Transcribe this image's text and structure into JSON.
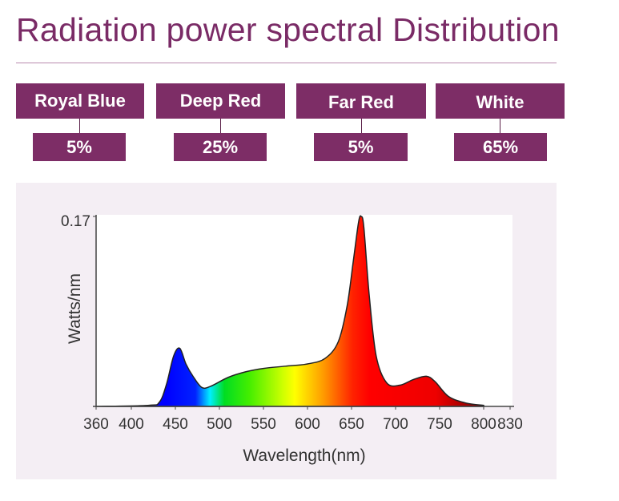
{
  "title": "Radiation power spectral Distribution",
  "channels": [
    {
      "label": "Royal Blue",
      "percent": "5%"
    },
    {
      "label": "Deep Red",
      "percent": "25%"
    },
    {
      "label": "Far Red",
      "percent": "5%"
    },
    {
      "label": "White",
      "percent": "65%"
    }
  ],
  "colors": {
    "accent": "#7d2d66",
    "panel": "#f4eef4"
  },
  "chart_data": {
    "type": "area",
    "xlabel": "Wavelength(nm)",
    "ylabel": "Watts/nm",
    "ytick_label": "0.17",
    "xlim": [
      360,
      830
    ],
    "ylim": [
      0,
      0.17
    ],
    "xticks": [
      "360",
      "400",
      "450",
      "500",
      "550",
      "600",
      "650",
      "700",
      "750",
      "800",
      "830"
    ],
    "x": [
      360,
      420,
      432,
      440,
      448,
      455,
      462,
      470,
      480,
      490,
      510,
      530,
      550,
      575,
      600,
      620,
      635,
      645,
      652,
      658,
      661,
      664,
      670,
      678,
      690,
      705,
      720,
      735,
      745,
      760,
      780,
      800
    ],
    "y": [
      0,
      0.001,
      0.004,
      0.02,
      0.045,
      0.052,
      0.038,
      0.027,
      0.017,
      0.018,
      0.026,
      0.031,
      0.034,
      0.036,
      0.038,
      0.043,
      0.058,
      0.09,
      0.13,
      0.165,
      0.17,
      0.16,
      0.1,
      0.045,
      0.021,
      0.019,
      0.024,
      0.027,
      0.022,
      0.009,
      0.003,
      0.001
    ]
  }
}
